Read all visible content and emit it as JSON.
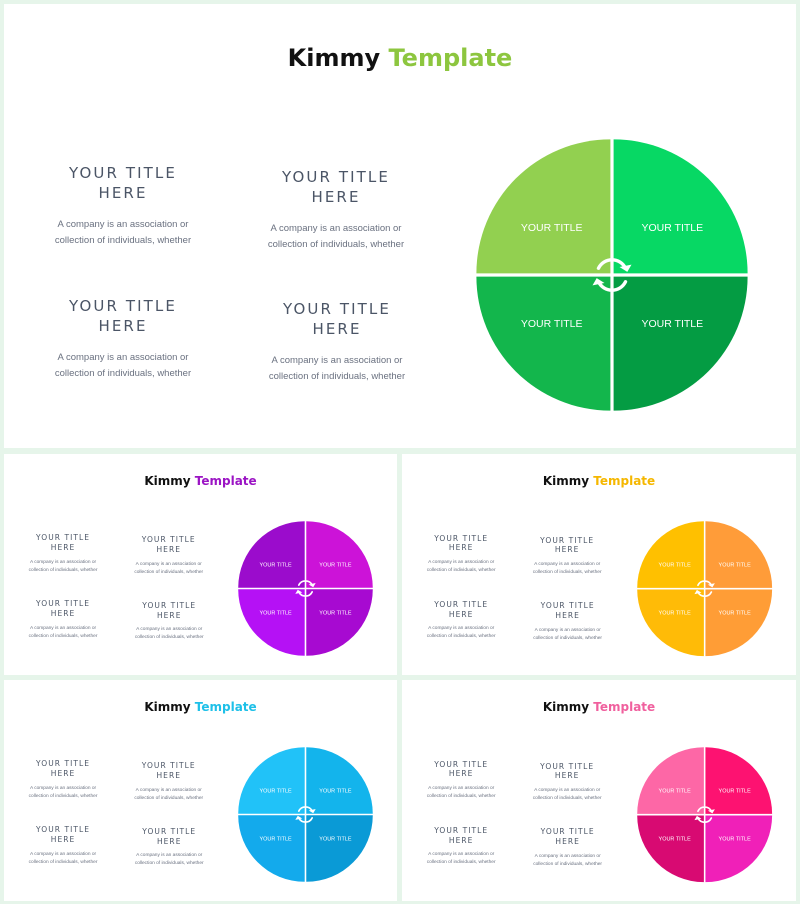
{
  "slides": [
    {
      "title_part1": "Kimmy",
      "title_part2": "Template",
      "accent": "#8dc63f",
      "quadrant_colors": [
        "#92d050",
        "#07d864",
        "#13b64c",
        "#049c43"
      ],
      "quadrant_labels": [
        "YOUR TITLE",
        "YOUR TITLE",
        "YOUR TITLE",
        "YOUR TITLE"
      ],
      "blocks": [
        {
          "title": "YOUR TITLE\nHERE",
          "desc": "A company is an association or\ncollection of individuals, whether"
        },
        {
          "title": "YOUR TITLE\nHERE",
          "desc": "A company is an association or\ncollection of individuals, whether"
        },
        {
          "title": "YOUR TITLE\nHERE",
          "desc": "A company is an association or\ncollection of individuals, whether"
        },
        {
          "title": "YOUR TITLE\nHERE",
          "desc": "A company is an association or\ncollection of individuals, whether"
        }
      ]
    },
    {
      "title_part1": "Kimmy",
      "title_part2": "Template",
      "accent": "#9b14c4",
      "quadrant_colors": [
        "#9b0ccc",
        "#cc13d8",
        "#b511f5",
        "#a70ad1"
      ],
      "quadrant_labels": [
        "YOUR TITLE",
        "YOUR TITLE",
        "YOUR TITLE",
        "YOUR TITLE"
      ],
      "blocks": [
        {
          "title": "YOUR TITLE\nHERE",
          "desc": "A company is an association or\ncollection of individuals, whether"
        },
        {
          "title": "YOUR TITLE\nHERE",
          "desc": "A company is an association or\ncollection of individuals, whether"
        },
        {
          "title": "YOUR TITLE\nHERE",
          "desc": "A company is an association or\ncollection of individuals, whether"
        },
        {
          "title": "YOUR TITLE\nHERE",
          "desc": "A company is an association or\ncollection of individuals, whether"
        }
      ]
    },
    {
      "title_part1": "Kimmy",
      "title_part2": "Template",
      "accent": "#f5b700",
      "quadrant_colors": [
        "#ffc000",
        "#ff9c39",
        "#ffbb07",
        "#ff9d36"
      ],
      "quadrant_labels": [
        "YOUR TITLE",
        "YOUR TITLE",
        "YOUR TITLE",
        "YOUR TITLE"
      ],
      "blocks": [
        {
          "title": "YOUR TITLE\nHERE",
          "desc": "A company is an association or\ncollection of individuals, whether"
        },
        {
          "title": "YOUR TITLE\nHERE",
          "desc": "A company is an association or\ncollection of individuals, whether"
        },
        {
          "title": "YOUR TITLE\nHERE",
          "desc": "A company is an association or\ncollection of individuals, whether"
        },
        {
          "title": "YOUR TITLE\nHERE",
          "desc": "A company is an association or\ncollection of individuals, whether"
        }
      ]
    },
    {
      "title_part1": "Kimmy",
      "title_part2": "Template",
      "accent": "#1ec0e8",
      "quadrant_colors": [
        "#21c2f8",
        "#13b4ec",
        "#13aaec",
        "#0a9ad6"
      ],
      "quadrant_labels": [
        "YOUR TITLE",
        "YOUR TITLE",
        "YOUR TITLE",
        "YOUR TITLE"
      ],
      "blocks": [
        {
          "title": "YOUR TITLE\nHERE",
          "desc": "A company is an association or\ncollection of individuals, whether"
        },
        {
          "title": "YOUR TITLE\nHERE",
          "desc": "A company is an association or\ncollection of individuals, whether"
        },
        {
          "title": "YOUR TITLE\nHERE",
          "desc": "A company is an association or\ncollection of individuals, whether"
        },
        {
          "title": "YOUR TITLE\nHERE",
          "desc": "A company is an association or\ncollection of individuals, whether"
        }
      ]
    },
    {
      "title_part1": "Kimmy",
      "title_part2": "Template",
      "accent": "#f0609e",
      "quadrant_colors": [
        "#fd67a6",
        "#fd1271",
        "#d80a72",
        "#f020b8"
      ],
      "quadrant_labels": [
        "YOUR TITLE",
        "YOUR TITLE",
        "YOUR TITLE",
        "YOUR TITLE"
      ],
      "blocks": [
        {
          "title": "YOUR TITLE\nHERE",
          "desc": "A company is an association or\ncollection of individuals, whether"
        },
        {
          "title": "YOUR TITLE\nHERE",
          "desc": "A company is an association or\ncollection of individuals, whether"
        },
        {
          "title": "YOUR TITLE\nHERE",
          "desc": "A company is an association or\ncollection of individuals, whether"
        },
        {
          "title": "YOUR TITLE\nHERE",
          "desc": "A company is an association or\ncollection of individuals, whether"
        }
      ]
    }
  ]
}
